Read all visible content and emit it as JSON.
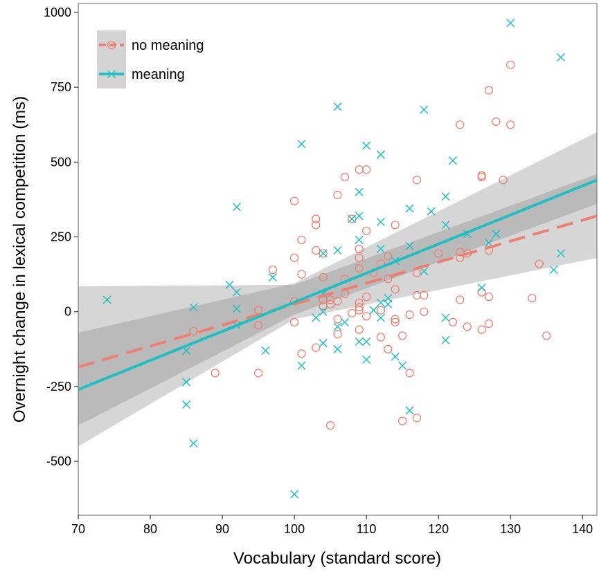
{
  "chart_data": {
    "type": "scatter",
    "title": "",
    "xlabel": "Vocabulary (standard score)",
    "ylabel": "Overnight change in lexical competition (ms)",
    "xlim": [
      70,
      142
    ],
    "ylim": [
      -680,
      1030
    ],
    "x_ticks": [
      70,
      80,
      90,
      100,
      110,
      120,
      130,
      140
    ],
    "y_ticks": [
      -500,
      -250,
      0,
      250,
      500,
      750,
      1000
    ],
    "x_tick_labels": [
      "70",
      "80",
      "90",
      "100",
      "110",
      "120",
      "130",
      "140"
    ],
    "y_tick_labels": [
      "-500",
      "-250",
      "0",
      "250",
      "500",
      "750",
      "1000"
    ],
    "grid": false,
    "legend_position": "top-left",
    "series": [
      {
        "name": "no meaning",
        "marker": "circle",
        "line_style": "dashed",
        "color": "#F07F73",
        "fit": {
          "x": [
            70,
            142
          ],
          "y": [
            -185,
            320
          ]
        },
        "band": {
          "x": [
            70,
            100,
            142
          ],
          "lower": [
            -450,
            -25,
            180
          ],
          "upper": [
            85,
            90,
            460
          ]
        },
        "points": [
          [
            86,
            -65
          ],
          [
            89,
            -205
          ],
          [
            95,
            5
          ],
          [
            95,
            -45
          ],
          [
            95,
            -205
          ],
          [
            97,
            140
          ],
          [
            100,
            370
          ],
          [
            100,
            180
          ],
          [
            100,
            35
          ],
          [
            100,
            -35
          ],
          [
            101,
            240
          ],
          [
            101,
            125
          ],
          [
            101,
            -140
          ],
          [
            103,
            310
          ],
          [
            103,
            290
          ],
          [
            103,
            205
          ],
          [
            103,
            -120
          ],
          [
            104,
            195
          ],
          [
            104,
            115
          ],
          [
            104,
            40
          ],
          [
            104,
            20
          ],
          [
            105,
            40
          ],
          [
            105,
            25
          ],
          [
            105,
            -380
          ],
          [
            106,
            390
          ],
          [
            106,
            35
          ],
          [
            106,
            -25
          ],
          [
            106,
            -75
          ],
          [
            107,
            450
          ],
          [
            107,
            110
          ],
          [
            107,
            60
          ],
          [
            108,
            310
          ],
          [
            108,
            -5
          ],
          [
            109,
            475
          ],
          [
            109,
            210
          ],
          [
            109,
            180
          ],
          [
            109,
            145
          ],
          [
            109,
            30
          ],
          [
            109,
            15
          ],
          [
            109,
            5
          ],
          [
            109,
            -60
          ],
          [
            110,
            475
          ],
          [
            110,
            270
          ],
          [
            110,
            50
          ],
          [
            110,
            -15
          ],
          [
            111,
            130
          ],
          [
            112,
            160
          ],
          [
            112,
            5
          ],
          [
            112,
            -85
          ],
          [
            113,
            185
          ],
          [
            113,
            110
          ],
          [
            113,
            -125
          ],
          [
            114,
            290
          ],
          [
            114,
            75
          ],
          [
            114,
            -25
          ],
          [
            114,
            -35
          ],
          [
            115,
            -80
          ],
          [
            115,
            -365
          ],
          [
            116,
            -10
          ],
          [
            116,
            -205
          ],
          [
            117,
            440
          ],
          [
            117,
            130
          ],
          [
            117,
            55
          ],
          [
            117,
            -355
          ],
          [
            118,
            55
          ],
          [
            118,
            0
          ],
          [
            120,
            195
          ],
          [
            122,
            -35
          ],
          [
            123,
            625
          ],
          [
            123,
            200
          ],
          [
            123,
            180
          ],
          [
            123,
            40
          ],
          [
            124,
            195
          ],
          [
            124,
            -50
          ],
          [
            126,
            455
          ],
          [
            126,
            450
          ],
          [
            126,
            65
          ],
          [
            126,
            -60
          ],
          [
            127,
            740
          ],
          [
            127,
            205
          ],
          [
            127,
            50
          ],
          [
            127,
            -40
          ],
          [
            128,
            635
          ],
          [
            129,
            440
          ],
          [
            130,
            825
          ],
          [
            130,
            625
          ],
          [
            133,
            45
          ],
          [
            134,
            160
          ],
          [
            135,
            -80
          ]
        ]
      },
      {
        "name": "meaning",
        "marker": "x",
        "line_style": "solid",
        "color": "#1FBFC4",
        "fit": {
          "x": [
            70,
            142
          ],
          "y": [
            -260,
            440
          ]
        },
        "band": {
          "x": [
            70,
            100,
            142
          ],
          "lower": [
            -380,
            -10,
            360
          ],
          "upper": [
            -70,
            95,
            600
          ]
        },
        "points": [
          [
            74,
            40
          ],
          [
            85,
            -130
          ],
          [
            85,
            -235
          ],
          [
            85,
            -310
          ],
          [
            86,
            15
          ],
          [
            86,
            -440
          ],
          [
            91,
            90
          ],
          [
            92,
            350
          ],
          [
            92,
            65
          ],
          [
            92,
            10
          ],
          [
            92,
            -45
          ],
          [
            96,
            -130
          ],
          [
            97,
            115
          ],
          [
            100,
            -610
          ],
          [
            101,
            560
          ],
          [
            101,
            -180
          ],
          [
            103,
            -20
          ],
          [
            104,
            195
          ],
          [
            104,
            60
          ],
          [
            104,
            0
          ],
          [
            104,
            -105
          ],
          [
            106,
            685
          ],
          [
            106,
            205
          ],
          [
            106,
            -125
          ],
          [
            106,
            -50
          ],
          [
            107,
            -35
          ],
          [
            108,
            310
          ],
          [
            109,
            400
          ],
          [
            109,
            320
          ],
          [
            109,
            240
          ],
          [
            109,
            -100
          ],
          [
            110,
            555
          ],
          [
            110,
            -100
          ],
          [
            110,
            -160
          ],
          [
            111,
            5
          ],
          [
            112,
            525
          ],
          [
            112,
            300
          ],
          [
            112,
            210
          ],
          [
            112,
            30
          ],
          [
            112,
            -20
          ],
          [
            113,
            45
          ],
          [
            113,
            25
          ],
          [
            114,
            170
          ],
          [
            114,
            -150
          ],
          [
            115,
            -180
          ],
          [
            116,
            345
          ],
          [
            116,
            220
          ],
          [
            116,
            -330
          ],
          [
            118,
            675
          ],
          [
            118,
            135
          ],
          [
            119,
            335
          ],
          [
            121,
            385
          ],
          [
            121,
            290
          ],
          [
            121,
            -20
          ],
          [
            121,
            -95
          ],
          [
            122,
            505
          ],
          [
            124,
            260
          ],
          [
            126,
            80
          ],
          [
            127,
            230
          ],
          [
            128,
            260
          ],
          [
            130,
            965
          ],
          [
            136,
            140
          ],
          [
            137,
            850
          ],
          [
            137,
            195
          ]
        ]
      }
    ]
  }
}
